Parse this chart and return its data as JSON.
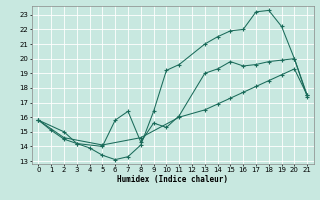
{
  "xlabel": "Humidex (Indice chaleur)",
  "bg_color": "#c8e8e0",
  "grid_color": "#ffffff",
  "line_color": "#1a6b5a",
  "xlim": [
    -0.5,
    21.5
  ],
  "ylim": [
    12.8,
    23.6
  ],
  "xticks": [
    0,
    1,
    2,
    3,
    4,
    5,
    6,
    7,
    8,
    9,
    10,
    11,
    12,
    13,
    14,
    15,
    16,
    17,
    18,
    19,
    20,
    21
  ],
  "yticks": [
    13,
    14,
    15,
    16,
    17,
    18,
    19,
    20,
    21,
    22,
    23
  ],
  "curve1_x": [
    0,
    1,
    2,
    3,
    4,
    5,
    6,
    7,
    8,
    9,
    10,
    11,
    13,
    14,
    15,
    16,
    17,
    18,
    19,
    20,
    21
  ],
  "curve1_y": [
    15.8,
    15.1,
    14.5,
    14.2,
    13.9,
    13.4,
    13.1,
    13.3,
    14.1,
    16.4,
    19.2,
    19.6,
    21.0,
    21.5,
    21.9,
    22.0,
    23.2,
    23.3,
    22.2,
    20.0,
    17.5
  ],
  "curve2_x": [
    0,
    2,
    3,
    5,
    6,
    7,
    8,
    9,
    10,
    11,
    13,
    14,
    15,
    16,
    17,
    18,
    19,
    20,
    21
  ],
  "curve2_y": [
    15.8,
    15.0,
    14.2,
    14.0,
    15.8,
    16.4,
    14.3,
    15.6,
    15.3,
    16.1,
    19.0,
    19.3,
    19.8,
    19.5,
    19.6,
    19.8,
    19.9,
    20.0,
    17.4
  ],
  "curve3_x": [
    0,
    2,
    5,
    8,
    11,
    13,
    14,
    15,
    16,
    17,
    18,
    19,
    20,
    21
  ],
  "curve3_y": [
    15.8,
    14.6,
    14.1,
    14.6,
    16.0,
    16.5,
    16.9,
    17.3,
    17.7,
    18.1,
    18.5,
    18.9,
    19.3,
    17.5
  ],
  "xlabel_fontsize": 5.5,
  "tick_fontsize": 5.0
}
